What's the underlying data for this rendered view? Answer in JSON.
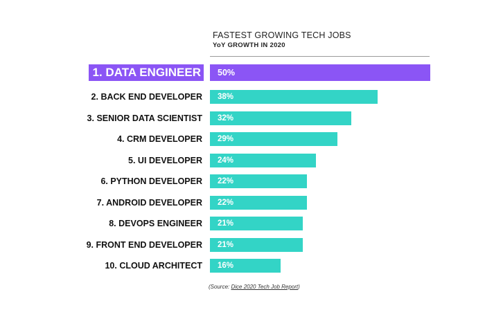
{
  "chart_data": {
    "type": "bar",
    "orientation": "horizontal",
    "title": "FASTEST GROWING TECH JOBS",
    "subtitle": "YoY GROWTH IN 2020",
    "categories": [
      "1. DATA ENGINEER",
      "2. BACK END DEVELOPER",
      "3. SENIOR DATA SCIENTIST",
      "4. CRM DEVELOPER",
      "5. UI DEVELOPER",
      "6. PYTHON DEVELOPER",
      "7. ANDROID DEVELOPER",
      "8. DEVOPS ENGINEER",
      "9. FRONT END DEVELOPER",
      "10. CLOUD ARCHITECT"
    ],
    "values": [
      50,
      38,
      32,
      29,
      24,
      22,
      22,
      21,
      21,
      16
    ],
    "value_labels": [
      "50%",
      "38%",
      "32%",
      "29%",
      "24%",
      "22%",
      "22%",
      "21%",
      "21%",
      "16%"
    ],
    "unit": "%",
    "xlim": [
      0,
      50
    ],
    "highlight_index": 0,
    "colors": {
      "highlight": "#8b55f5",
      "bar": "#33d4c6"
    },
    "grid": false,
    "legend": "none"
  },
  "source": {
    "prefix": "(Source: ",
    "link_text": "Dice 2020 Tech Job Report",
    "suffix": ")"
  }
}
